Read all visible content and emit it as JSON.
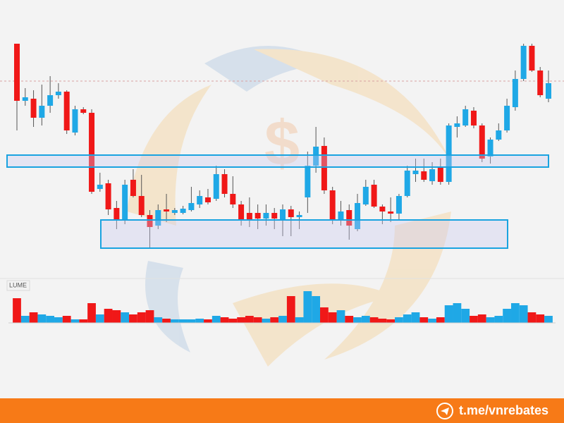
{
  "chart_data": {
    "type": "candlestick",
    "volume_label": "LUME",
    "footer_link": "t.me/vnrebates",
    "up_color": "#1fa8e6",
    "down_color": "#f01818",
    "ylim": [
      40,
      350
    ],
    "volume_ylim": [
      0,
      50
    ],
    "resistance": 285,
    "zones": [
      {
        "low": 163,
        "high": 180
      },
      {
        "low": 48,
        "high": 88
      }
    ],
    "open": [
      338,
      257,
      260,
      233,
      250,
      265,
      270,
      212,
      245,
      240,
      132,
      140,
      105,
      88,
      145,
      122,
      95,
      80,
      103,
      98,
      98,
      102,
      110,
      120,
      118,
      153,
      125,
      110,
      98,
      98,
      90,
      98,
      88,
      103,
      92,
      120,
      165,
      193,
      130,
      88,
      102,
      75,
      110,
      138,
      107,
      100,
      97,
      122,
      153,
      157,
      143,
      162,
      142,
      220,
      222,
      243,
      222,
      178,
      202,
      215,
      248,
      288,
      335,
      300,
      260
    ],
    "high": [
      338,
      275,
      272,
      280,
      292,
      282,
      272,
      250,
      248,
      245,
      155,
      145,
      115,
      145,
      160,
      152,
      102,
      110,
      125,
      105,
      108,
      135,
      130,
      132,
      165,
      160,
      150,
      115,
      120,
      110,
      110,
      105,
      110,
      108,
      100,
      185,
      220,
      205,
      135,
      115,
      110,
      125,
      145,
      145,
      110,
      120,
      125,
      165,
      175,
      175,
      170,
      175,
      225,
      235,
      250,
      248,
      225,
      205,
      225,
      260,
      300,
      338,
      338,
      305,
      300
    ],
    "low": [
      215,
      250,
      220,
      222,
      240,
      260,
      210,
      208,
      238,
      125,
      128,
      95,
      75,
      82,
      120,
      92,
      48,
      75,
      85,
      95,
      96,
      100,
      105,
      110,
      115,
      120,
      105,
      80,
      78,
      75,
      80,
      75,
      65,
      65,
      75,
      98,
      155,
      125,
      82,
      80,
      60,
      72,
      108,
      105,
      82,
      85,
      88,
      120,
      142,
      142,
      138,
      138,
      138,
      205,
      220,
      218,
      170,
      168,
      200,
      212,
      243,
      285,
      298,
      262,
      255
    ],
    "close": [
      257,
      262,
      233,
      250,
      265,
      270,
      215,
      245,
      240,
      128,
      138,
      103,
      88,
      138,
      122,
      95,
      78,
      102,
      100,
      102,
      104,
      112,
      122,
      113,
      153,
      125,
      110,
      88,
      88,
      90,
      98,
      90,
      103,
      92,
      95,
      165,
      192,
      130,
      88,
      100,
      80,
      112,
      135,
      107,
      100,
      97,
      122,
      158,
      158,
      145,
      160,
      142,
      222,
      225,
      245,
      222,
      175,
      202,
      215,
      250,
      288,
      335,
      300,
      265,
      282
    ],
    "volume": [
      35,
      10,
      15,
      12,
      10,
      8,
      10,
      5,
      5,
      28,
      12,
      20,
      18,
      15,
      12,
      15,
      18,
      8,
      6,
      5,
      5,
      5,
      6,
      5,
      10,
      8,
      6,
      8,
      10,
      8,
      6,
      8,
      10,
      38,
      8,
      45,
      38,
      22,
      15,
      18,
      10,
      8,
      10,
      8,
      6,
      5,
      8,
      12,
      15,
      8,
      6,
      8,
      25,
      28,
      20,
      10,
      12,
      8,
      10,
      20,
      28,
      25,
      15,
      12,
      10
    ]
  }
}
